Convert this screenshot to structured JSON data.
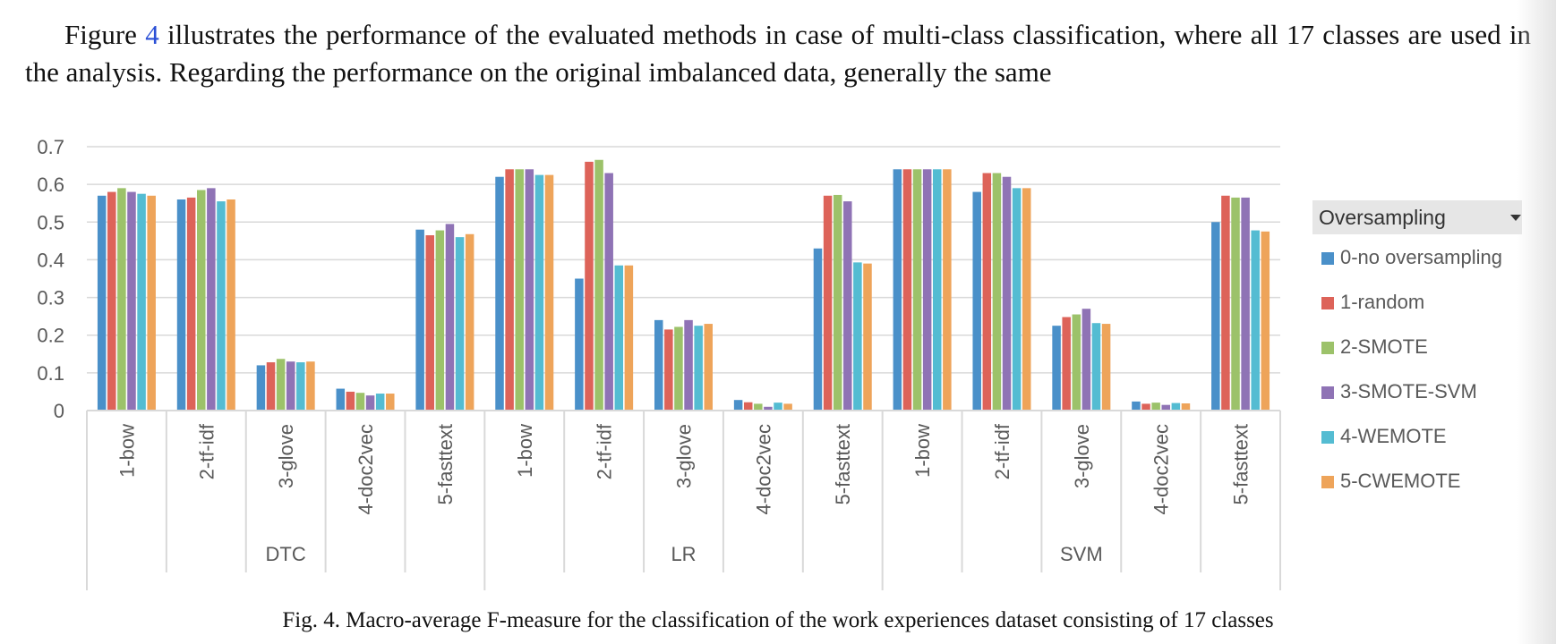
{
  "paragraph": {
    "part1": "Figure ",
    "ref": "4",
    "part2": " illustrates the performance of the evaluated methods in case of multi-class classification, where all 17 classes are used in the analysis. Regarding the performance on the original imbalanced data, generally the same"
  },
  "caption": "Fig. 4. Macro-average F-measure for the classification of the work experiences dataset consisting of 17 classes",
  "chart_data": {
    "type": "bar",
    "title": "",
    "ylim": [
      0,
      0.7
    ],
    "yticks": [
      "0",
      "0.1",
      "0.2",
      "0.3",
      "0.4",
      "0.5",
      "0.6",
      "0.7"
    ],
    "grid": true,
    "legend_placement": "right",
    "legend_title": "Oversampling",
    "groups": [
      {
        "name": "DTC",
        "categories": [
          "1-bow",
          "2-tf-idf",
          "3-glove",
          "4-doc2vec",
          "5-fasttext"
        ]
      },
      {
        "name": "LR",
        "categories": [
          "1-bow",
          "2-tf-idf",
          "3-glove",
          "4-doc2vec",
          "5-fasttext"
        ]
      },
      {
        "name": "SVM",
        "categories": [
          "1-bow",
          "2-tf-idf",
          "3-glove",
          "4-doc2vec",
          "5-fasttext"
        ]
      }
    ],
    "series": [
      {
        "name": "0-no oversampling",
        "color": "#4a90c9",
        "values": [
          0.57,
          0.56,
          0.12,
          0.058,
          0.48,
          0.62,
          0.35,
          0.24,
          0.028,
          0.43,
          0.64,
          0.58,
          0.225,
          0.024,
          0.5
        ]
      },
      {
        "name": "1-random",
        "color": "#dd6359",
        "values": [
          0.58,
          0.565,
          0.128,
          0.05,
          0.465,
          0.64,
          0.66,
          0.215,
          0.022,
          0.57,
          0.64,
          0.63,
          0.248,
          0.018,
          0.57
        ]
      },
      {
        "name": "2-SMOTE",
        "color": "#9cc26a",
        "values": [
          0.59,
          0.585,
          0.137,
          0.047,
          0.478,
          0.64,
          0.665,
          0.222,
          0.018,
          0.572,
          0.64,
          0.63,
          0.255,
          0.021,
          0.565
        ]
      },
      {
        "name": "3-SMOTE-SVM",
        "color": "#8f73b5",
        "values": [
          0.58,
          0.59,
          0.13,
          0.04,
          0.495,
          0.64,
          0.63,
          0.24,
          0.01,
          0.555,
          0.64,
          0.62,
          0.27,
          0.015,
          0.565
        ]
      },
      {
        "name": "4-WEMOTE",
        "color": "#54bcd2",
        "values": [
          0.575,
          0.555,
          0.128,
          0.045,
          0.46,
          0.625,
          0.385,
          0.225,
          0.021,
          0.393,
          0.64,
          0.59,
          0.232,
          0.02,
          0.478
        ]
      },
      {
        "name": "5-CWEMOTE",
        "color": "#eea45a",
        "values": [
          0.57,
          0.56,
          0.13,
          0.045,
          0.468,
          0.625,
          0.385,
          0.23,
          0.018,
          0.39,
          0.64,
          0.59,
          0.23,
          0.019,
          0.475
        ]
      }
    ]
  }
}
